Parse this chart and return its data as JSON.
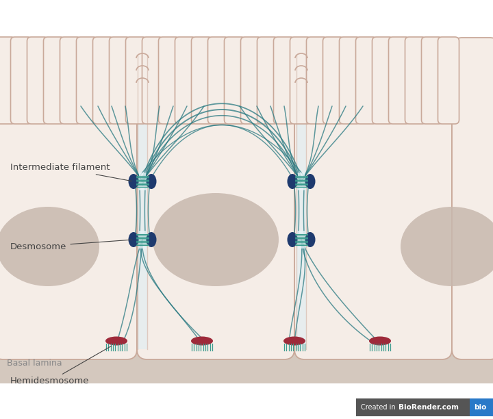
{
  "bg_color": "#fdf5f0",
  "basal_lamina_color": "#d4c8be",
  "cell_border_color": "#c9a99a",
  "cell_fill_color": "#f5ede7",
  "microvilli_color": "#c9a99a",
  "nucleus_color": "#c8b8ae",
  "desmosome_dark": "#1e3a6e",
  "desmosome_teal": "#3a9b8e",
  "hemidesmosome_red": "#9e2a3a",
  "filament_color": "#2a7a82",
  "filament_alpha": 0.75,
  "label_color": "#444444",
  "basal_text_color": "#888888",
  "labels": {
    "intermediate_filament": "Intermediate filament",
    "desmosome": "Desmosome",
    "hemidesmosome": "Hemidesmosome",
    "basal_lamina": "Basal lamina"
  }
}
